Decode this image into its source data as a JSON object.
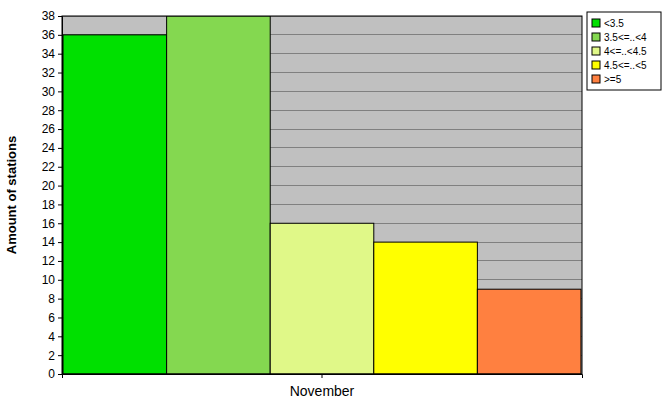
{
  "chart_data": {
    "type": "bar",
    "y_label": "Amount of stations",
    "categories": [
      "November"
    ],
    "series": [
      {
        "name": "<3.5",
        "color": "#00e000",
        "values": [
          36
        ]
      },
      {
        "name": "3.5<=..<4",
        "color": "#84d850",
        "values": [
          38
        ]
      },
      {
        "name": "4<=..<4.5",
        "color": "#e0f888",
        "values": [
          16
        ]
      },
      {
        "name": "4.5<=..<5",
        "color": "#ffff00",
        "values": [
          14
        ]
      },
      {
        "name": ">=5",
        "color": "#ff8040",
        "values": [
          9
        ]
      }
    ],
    "ylim": [
      0,
      38
    ],
    "yticks": [
      0,
      2,
      4,
      6,
      8,
      10,
      12,
      14,
      16,
      18,
      20,
      22,
      24,
      26,
      28,
      30,
      32,
      34,
      36,
      38
    ],
    "grid": true,
    "legend": "top-right"
  }
}
